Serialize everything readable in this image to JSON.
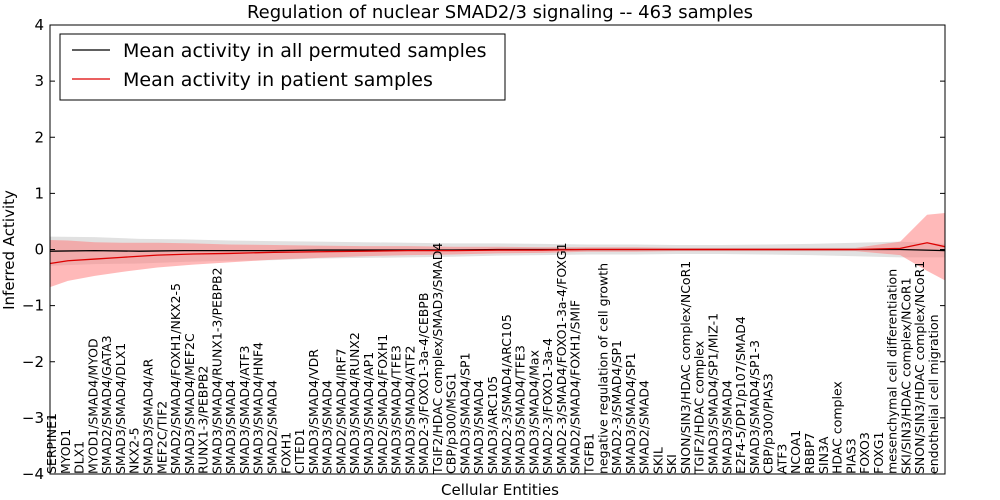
{
  "chart_data": {
    "type": "line",
    "title": "Regulation of nuclear SMAD2/3 signaling -- 463 samples",
    "xlabel": "Cellular Entities",
    "ylabel": "Inferred Activity",
    "ylim": [
      -4,
      4
    ],
    "yticks": [
      -4,
      -3,
      -2,
      -1,
      0,
      1,
      2,
      3,
      4
    ],
    "grid": false,
    "legend_position": "top-left",
    "series": [
      {
        "name": "Mean activity in all permuted samples",
        "color": "#000000",
        "band_color": "#c8c8c8",
        "x": [
          0,
          5,
          10,
          15,
          20,
          25,
          30,
          35,
          40,
          45,
          50,
          55,
          60,
          65,
          70,
          75,
          80,
          85,
          90,
          95,
          100
        ],
        "values": [
          -0.03,
          -0.02,
          -0.03,
          -0.02,
          -0.02,
          -0.02,
          -0.01,
          -0.01,
          -0.01,
          -0.01,
          0.0,
          0.0,
          0.0,
          0.0,
          0.0,
          0.0,
          0.0,
          0.0,
          0.0,
          0.0,
          -0.02
        ],
        "band_half_width": [
          0.26,
          0.24,
          0.22,
          0.2,
          0.18,
          0.17,
          0.15,
          0.14,
          0.13,
          0.12,
          0.11,
          0.1,
          0.09,
          0.09,
          0.08,
          0.08,
          0.09,
          0.1,
          0.12,
          0.14,
          0.12
        ]
      },
      {
        "name": "Mean activity in patient samples",
        "color": "#dd0000",
        "band_color": "#ff8080",
        "x": [
          0,
          2,
          5,
          8,
          12,
          16,
          20,
          25,
          30,
          35,
          40,
          45,
          50,
          55,
          60,
          65,
          70,
          75,
          80,
          85,
          90,
          95,
          98,
          100
        ],
        "values": [
          -0.25,
          -0.2,
          -0.17,
          -0.14,
          -0.1,
          -0.08,
          -0.07,
          -0.05,
          -0.04,
          -0.03,
          -0.02,
          -0.02,
          -0.01,
          -0.01,
          0.0,
          0.0,
          0.0,
          0.0,
          0.0,
          0.0,
          0.0,
          0.02,
          0.12,
          0.05
        ],
        "band_half_width": [
          0.42,
          0.36,
          0.3,
          0.26,
          0.22,
          0.19,
          0.16,
          0.13,
          0.11,
          0.09,
          0.08,
          0.07,
          0.06,
          0.05,
          0.04,
          0.04,
          0.03,
          0.03,
          0.03,
          0.03,
          0.03,
          0.12,
          0.5,
          0.6
        ]
      }
    ],
    "entity_labels": [
      "SERPINE1",
      "MYOD1",
      "DLX1",
      "MYOD1/SMAD4/MYOD",
      "SMAD2/SMAD4/GATA3",
      "SMAD3/SMAD4/DLX1",
      "NKX2-5",
      "SMAD3/SMAD4/AR",
      "MEF2C/TIF2",
      "SMAD2/SMAD4/FOXH1/NKX2-5",
      "SMAD3/SMAD4/MEF2C",
      "RUNX1-3/PEBPB2",
      "SMAD3/SMAD4/RUNX1-3/PEBPB2",
      "SMAD3/SMAD4",
      "SMAD3/SMAD4/ATF3",
      "SMAD3/SMAD4/HNF4",
      "SMAD2/SMAD4",
      "FOXH1",
      "CITED1",
      "SMAD3/SMAD4/VDR",
      "SMAD3/SMAD4",
      "SMAD2/SMAD4/IRF7",
      "SMAD3/SMAD4/RUNX2",
      "SMAD3/SMAD4/AP1",
      "SMAD2/SMAD4/FOXH1",
      "SMAD3/SMAD4/TFE3",
      "SMAD3/SMAD4/ATF2",
      "SMAD2-3/FOXO1-3a-4/CEBPB",
      "TGIF2/HDAC complex/SMAD3/SMAD4",
      "CBP/p300/MSG1",
      "SMAD3/SMAD4/SP1",
      "SMAD3/SMAD4",
      "SMAD3/ARC105",
      "SMAD2-3/SMAD4/ARC105",
      "SMAD3/SMAD4/TFE3",
      "SMAD3/SMAD4/Max",
      "SMAD2-3/FOXO1-3a-4",
      "SMAD2-3/SMAD4/FOXO1-3a-4/FOXG1",
      "SMAD2/SMAD4/FOXH1/SMIF",
      "TGFB1",
      "negative regulation of cell growth",
      "SMAD2-3/SMAD4/SP1",
      "SMAD3/SMAD4/SP1",
      "SMAD2/SMAD4",
      "SKIL",
      "SKI",
      "SNON/SIN3/HDAC complex/NCoR1",
      "TGIF2/HDAC complex",
      "SMAD3/SMAD4/SP1/MIZ-1",
      "SMAD3/SMAD4",
      "E2F4-5/DP1/p107/SMAD4",
      "SMAD3/SMAD4/SP1-3",
      "CBP/p300/PIAS3",
      "ATF3",
      "NCOA1",
      "RBBP7",
      "SIN3A",
      "HDAC complex",
      "PIAS3",
      "FOXO3",
      "FOXG1",
      "mesenchymal cell differentiation",
      "SKI/SIN3/HDAC complex/NCoR1",
      "SNON/SIN3/HDAC complex/NCoR1",
      "endothelial cell migration"
    ]
  }
}
